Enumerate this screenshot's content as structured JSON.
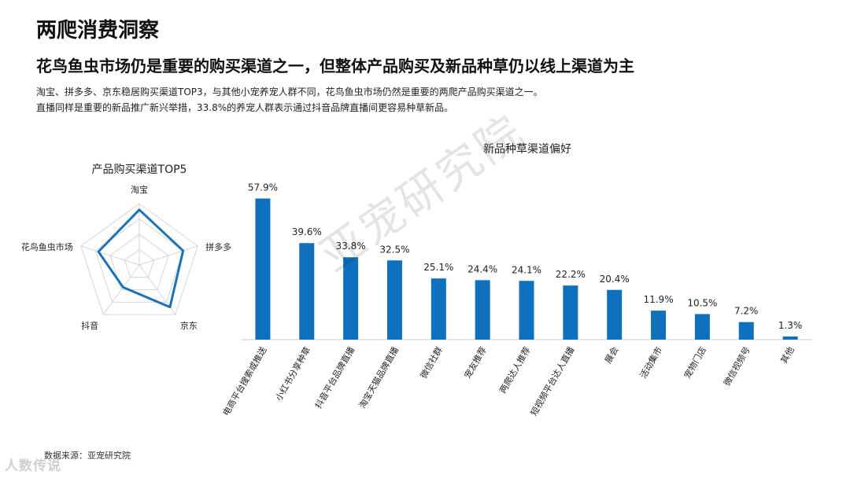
{
  "header": {
    "title": "两爬消费洞察",
    "subtitle": "花鸟鱼虫市场仍是重要的购买渠道之一，但整体产品购买及新品种草仍以线上渠道为主",
    "desc_line1": "淘宝、拼多多、京东稳居购买渠道TOP3，与其他小宠养宠人群不同，花鸟鱼虫市场仍然是重要的两爬产品购买渠道之一。",
    "desc_line2": "直播同样是重要的新品推广新兴举措，33.8%的养宠人群表示通过抖音品牌直播间更容易种草新品。"
  },
  "footer": {
    "source": "数据来源：亚宠研究院",
    "brand": "人数传说"
  },
  "watermark": "亚宠研究院",
  "colors": {
    "bar": "#0f70bd",
    "radar_line": "#1a72b8",
    "grid": "#d6d6d6"
  },
  "chart_data": [
    {
      "type": "radar",
      "title": "产品购买渠道TOP5",
      "axes": [
        "淘宝",
        "拼多多",
        "京东",
        "抖音",
        "花鸟鱼虫市场"
      ],
      "values": [
        0.9,
        0.75,
        0.85,
        0.45,
        0.7
      ],
      "max": 1.0,
      "grid_levels": 4
    },
    {
      "type": "bar",
      "title": "新品种草渠道偏好",
      "categories": [
        "电商平台搜索或推送",
        "小红书分享种草",
        "抖音平台品牌直播",
        "淘宝天猫品牌直播",
        "微信社群",
        "宠友推荐",
        "两爬达人推荐",
        "短视频平台达人直播",
        "展会",
        "活动集市",
        "宠物门店",
        "微信视频号",
        "其他"
      ],
      "values": [
        57.9,
        39.6,
        33.8,
        32.5,
        25.1,
        24.4,
        24.1,
        22.2,
        20.4,
        11.9,
        10.5,
        7.2,
        1.3
      ],
      "value_labels": [
        "57.9%",
        "39.6%",
        "33.8%",
        "32.5%",
        "25.1%",
        "24.4%",
        "24.1%",
        "22.2%",
        "20.4%",
        "11.9%",
        "10.5%",
        "7.2%",
        "1.3%"
      ],
      "ylim": [
        0,
        60
      ],
      "grid": false
    }
  ]
}
